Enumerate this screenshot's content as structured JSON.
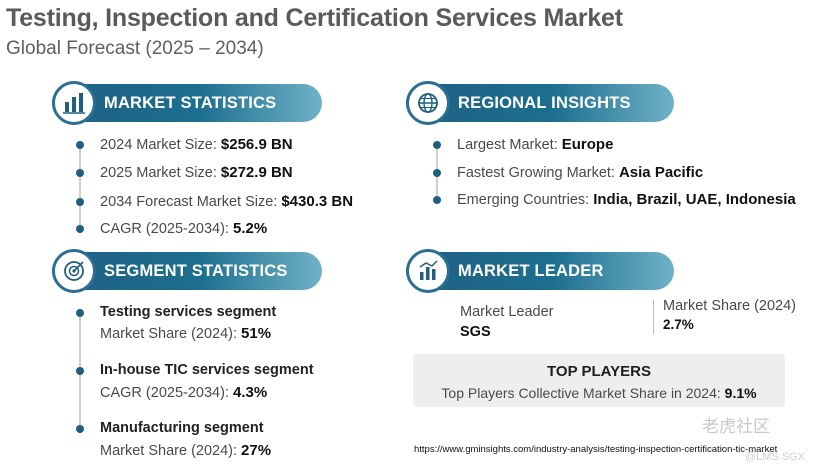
{
  "header": {
    "title": "Testing, Inspection and Certification Services Market",
    "subtitle": "Global Forecast (2025 – 2034)"
  },
  "market_statistics": {
    "heading": "MARKET STATISTICS",
    "icon": "building-chart-icon",
    "rows": [
      {
        "label": "2024 Market Size: ",
        "value": "$256.9 BN"
      },
      {
        "label": "2025 Market Size: ",
        "value": "$272.9 BN"
      },
      {
        "label": "2034 Forecast Market Size: ",
        "value": "$430.3 BN"
      },
      {
        "label": "CAGR (2025-2034): ",
        "value": "5.2%"
      }
    ]
  },
  "regional_insights": {
    "heading": "REGIONAL INSIGHTS",
    "icon": "globe-icon",
    "rows": [
      {
        "label": "Largest Market: ",
        "value": "Europe"
      },
      {
        "label": "Fastest Growing Market: ",
        "value": "Asia Pacific"
      },
      {
        "label": "Emerging Countries: ",
        "value": "India, Brazil, UAE, Indonesia"
      }
    ]
  },
  "segment_statistics": {
    "heading": "SEGMENT STATISTICS",
    "icon": "target-chart-icon",
    "segments": [
      {
        "name": "Testing services segment",
        "metric": "Market Share (2024): ",
        "value": "51%"
      },
      {
        "name": "In-house TIC services segment",
        "metric": "CAGR (2025-2034): ",
        "value": "4.3%"
      },
      {
        "name": "Manufacturing segment",
        "metric": "Market Share (2024): ",
        "value": "27%"
      }
    ]
  },
  "market_leader": {
    "heading": "MARKET LEADER",
    "icon": "bar-chart-icon",
    "leader_label": "Market Leader",
    "leader_value": "SGS",
    "share_label": "Market Share (2024)",
    "share_value": "2.7%"
  },
  "top_players": {
    "title": "TOP PLAYERS",
    "label": "Top Players Collective Market Share in 2024: ",
    "value": "9.1%"
  },
  "source_url": "https://www.gminsights.com/industry-analysis/testing-inspection-certification-tic-market",
  "watermark": "老虎社区",
  "watermark_handle": "@LMS SGX",
  "colors": {
    "banner_dark": "#1f5f82",
    "banner_light": "#6fb2c7",
    "dot": "#1f5f82"
  }
}
